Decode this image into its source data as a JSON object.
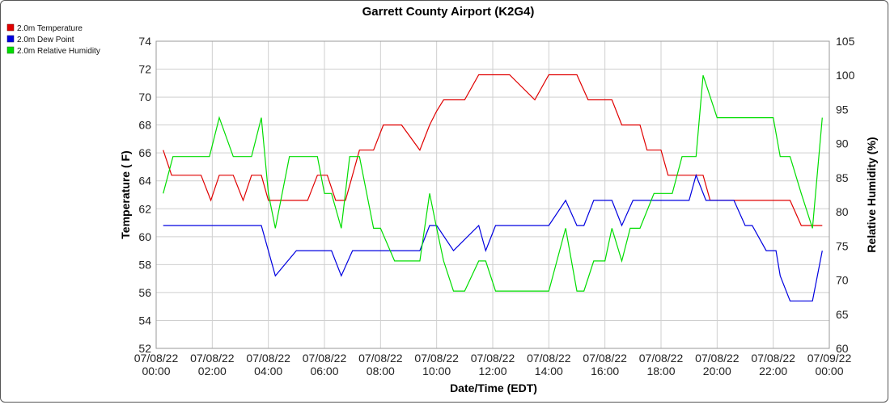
{
  "chart_data": {
    "type": "line",
    "title": "Garrett County Airport (K2G4)",
    "xlabel": "Date/Time (EDT)",
    "ylabel_left": "Temperature ( F)",
    "ylabel_right": "Relative Humidity (%)",
    "xlim": [
      0,
      24
    ],
    "ylim_left": [
      52,
      74
    ],
    "ylim_right": [
      60,
      105
    ],
    "grid": true,
    "legend_position": "top-left",
    "x_ticks": [
      {
        "date": "07/08/22",
        "time": "00:00",
        "hours": 0
      },
      {
        "date": "07/08/22",
        "time": "02:00",
        "hours": 2
      },
      {
        "date": "07/08/22",
        "time": "04:00",
        "hours": 4
      },
      {
        "date": "07/08/22",
        "time": "06:00",
        "hours": 6
      },
      {
        "date": "07/08/22",
        "time": "08:00",
        "hours": 8
      },
      {
        "date": "07/08/22",
        "time": "10:00",
        "hours": 10
      },
      {
        "date": "07/08/22",
        "time": "12:00",
        "hours": 12
      },
      {
        "date": "07/08/22",
        "time": "14:00",
        "hours": 14
      },
      {
        "date": "07/08/22",
        "time": "16:00",
        "hours": 16
      },
      {
        "date": "07/08/22",
        "time": "18:00",
        "hours": 18
      },
      {
        "date": "07/08/22",
        "time": "20:00",
        "hours": 20
      },
      {
        "date": "07/08/22",
        "time": "22:00",
        "hours": 22
      },
      {
        "date": "07/09/22",
        "time": "00:00",
        "hours": 24
      }
    ],
    "y_ticks_left": [
      52,
      54,
      56,
      58,
      60,
      62,
      64,
      66,
      68,
      70,
      72,
      74
    ],
    "y_ticks_right": [
      60,
      65,
      70,
      75,
      80,
      85,
      90,
      95,
      100,
      105
    ],
    "series": [
      {
        "name": "2.0m Temperature",
        "color": "#e00000",
        "axis": "left",
        "x": [
          0.25,
          0.55,
          1.0,
          1.6,
          1.95,
          2.25,
          2.75,
          3.1,
          3.4,
          3.75,
          4.0,
          4.6,
          5.0,
          5.4,
          5.75,
          6.1,
          6.4,
          6.75,
          7.25,
          7.75,
          8.1,
          8.4,
          8.75,
          9.4,
          9.75,
          10.0,
          10.25,
          10.75,
          11.0,
          11.5,
          11.75,
          12.1,
          12.6,
          13.5,
          14.0,
          14.6,
          15.0,
          15.4,
          15.75,
          16.25,
          16.6,
          16.9,
          17.25,
          17.5,
          18.0,
          18.25,
          18.5,
          18.9,
          19.25,
          19.5,
          19.75,
          20.6,
          21.0,
          21.4,
          21.75,
          22.1,
          22.6,
          23.0,
          23.4,
          23.75
        ],
        "values": [
          66.2,
          64.4,
          64.4,
          64.4,
          62.6,
          64.4,
          64.4,
          62.6,
          64.4,
          64.4,
          62.6,
          62.6,
          62.6,
          62.6,
          64.4,
          64.4,
          62.6,
          62.6,
          66.2,
          66.2,
          68.0,
          68.0,
          68.0,
          66.2,
          68.0,
          69.0,
          69.8,
          69.8,
          69.8,
          71.6,
          71.6,
          71.6,
          71.6,
          69.8,
          71.6,
          71.6,
          71.6,
          69.8,
          69.8,
          69.8,
          68.0,
          68.0,
          68.0,
          66.2,
          66.2,
          64.4,
          64.4,
          64.4,
          64.4,
          64.4,
          62.6,
          62.6,
          62.6,
          62.6,
          62.6,
          62.6,
          62.6,
          60.8,
          60.8,
          60.8
        ]
      },
      {
        "name": "2.0m Dew Point",
        "color": "#0000e0",
        "axis": "left",
        "x": [
          0.25,
          1.0,
          2.0,
          3.0,
          3.75,
          4.25,
          5.0,
          5.75,
          6.0,
          6.25,
          6.6,
          7.0,
          8.0,
          9.0,
          9.4,
          9.75,
          10.0,
          10.6,
          11.5,
          11.75,
          12.1,
          12.6,
          13.5,
          14.0,
          14.6,
          15.0,
          15.25,
          15.6,
          16.0,
          16.25,
          16.6,
          17.0,
          17.5,
          18.0,
          18.5,
          19.0,
          19.25,
          19.6,
          20.0,
          20.6,
          21.0,
          21.25,
          21.75,
          22.1,
          22.25,
          22.6,
          23.0,
          23.4,
          23.75
        ],
        "values": [
          60.8,
          60.8,
          60.8,
          60.8,
          60.8,
          57.2,
          59.0,
          59.0,
          59.0,
          59.0,
          57.2,
          59.0,
          59.0,
          59.0,
          59.0,
          60.8,
          60.8,
          59.0,
          60.8,
          59.0,
          60.8,
          60.8,
          60.8,
          60.8,
          62.6,
          60.8,
          60.8,
          62.6,
          62.6,
          62.6,
          60.8,
          62.6,
          62.6,
          62.6,
          62.6,
          62.6,
          64.4,
          62.6,
          62.6,
          62.6,
          60.8,
          60.8,
          59.0,
          59.0,
          57.2,
          55.4,
          55.4,
          55.4,
          59.0
        ]
      },
      {
        "name": "2.0m Relative Humidity",
        "color": "#00dd00",
        "axis": "right",
        "x": [
          0.25,
          0.6,
          1.25,
          1.9,
          2.25,
          2.75,
          3.1,
          3.4,
          3.75,
          4.0,
          4.25,
          4.75,
          5.5,
          5.75,
          6.0,
          6.25,
          6.6,
          6.9,
          7.25,
          7.75,
          8.0,
          8.5,
          8.75,
          9.0,
          9.4,
          9.75,
          10.0,
          10.25,
          10.6,
          11.0,
          11.5,
          11.75,
          12.1,
          12.5,
          13.5,
          14.0,
          14.6,
          15.0,
          15.25,
          15.6,
          16.0,
          16.25,
          16.6,
          16.9,
          17.25,
          17.75,
          18.0,
          18.4,
          18.75,
          19.25,
          19.5,
          20.0,
          21.0,
          21.75,
          22.0,
          22.25,
          22.6,
          23.0,
          23.4,
          23.75
        ],
        "values": [
          82.7,
          88.1,
          88.1,
          88.1,
          93.8,
          88.1,
          88.1,
          88.1,
          93.8,
          82.7,
          77.6,
          88.1,
          88.1,
          88.1,
          82.7,
          82.7,
          77.6,
          88.1,
          88.1,
          77.6,
          77.6,
          72.8,
          72.8,
          72.8,
          72.8,
          82.7,
          77.6,
          72.8,
          68.4,
          68.4,
          72.8,
          72.8,
          68.4,
          68.4,
          68.4,
          68.4,
          77.6,
          68.4,
          68.4,
          72.8,
          72.8,
          77.6,
          72.8,
          77.6,
          77.6,
          82.7,
          82.7,
          82.7,
          88.1,
          88.1,
          100.0,
          93.8,
          93.8,
          93.8,
          93.8,
          88.1,
          88.1,
          82.7,
          77.6,
          93.8
        ]
      }
    ]
  }
}
